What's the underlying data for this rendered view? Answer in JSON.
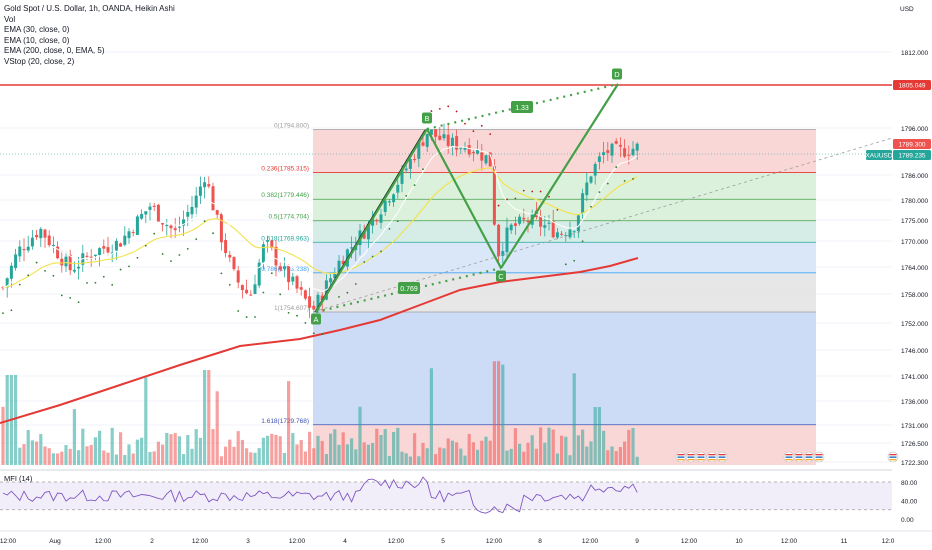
{
  "legend": {
    "title": "Gold Spot / U.S. Dollar, 1h, OANDA, Heikin Ashi",
    "lines": [
      "Vol",
      "EMA (30, close, 0)",
      "EMA (10, close, 0)",
      "EMA (200, close, 0, EMA, 5)",
      "VStop (20, close, 2)"
    ]
  },
  "currency": "USD",
  "mfi_label": "MFI (14)",
  "colors": {
    "up": "#26a69a",
    "down": "#ef5350",
    "ema200": "#e53935",
    "ema30": "#f2e24a",
    "fib_red": "#f9d0d0",
    "fib_green": "#d6eed6",
    "fib_teal": "#cfeae3",
    "fib_blue": "#d4e3f7",
    "fib_gray": "#e3e3e3",
    "fib_bigblue": "#c4d6f5",
    "pattern": "#43a047",
    "resistance": "#e53935"
  },
  "chart_data": {
    "type": "candlestick",
    "price_axis": {
      "ticks": [
        1812.0,
        1796.0,
        1786.0,
        1780.0,
        1775.0,
        1770.0,
        1764.0,
        1758.0,
        1752.0,
        1746.0,
        1741.0,
        1736.0,
        1731.0,
        1726.5,
        1722.3
      ],
      "tick_labels": [
        "1812.000",
        "1796.000",
        "1786.000",
        "1780.000",
        "1775.000",
        "1770.000",
        "1764.000",
        "1758.000",
        "1752.000",
        "1746.000",
        "1741.000",
        "1736.000",
        "1731.000",
        "1726.500",
        "1722.300"
      ]
    },
    "time_axis": {
      "labels": [
        "12:00",
        "Aug",
        "12:00",
        "2",
        "12:00",
        "3",
        "12:00",
        "4",
        "12:00",
        "5",
        "12:00",
        "8",
        "12:00",
        "9",
        "12:00",
        "10",
        "12:00",
        "11",
        "12:0"
      ]
    },
    "price_tags": [
      {
        "value": "1805.049",
        "style": "resistance"
      },
      {
        "value": "1789.300",
        "style": "current"
      },
      {
        "value": "XAUUSD",
        "style": "symbol"
      },
      {
        "value": "1789.235",
        "style": "symbol-value"
      }
    ],
    "fib_levels": [
      {
        "ratio": "0",
        "price": "1794.800",
        "label": "0(1794.800)"
      },
      {
        "ratio": "0.236",
        "price": "1785.315",
        "label": "0.236(1785.315)"
      },
      {
        "ratio": "0.382",
        "price": "1779.446",
        "label": "0.382(1779.446)"
      },
      {
        "ratio": "0.5",
        "price": "1774.704",
        "label": "0.5(1774.704)"
      },
      {
        "ratio": "0.618",
        "price": "1769.963",
        "label": "0.618(1769.963)"
      },
      {
        "ratio": "0.786",
        "price": "1763.238",
        "label": "0.786(1763.238)"
      },
      {
        "ratio": "1",
        "price": "1754.607",
        "label": "1(1754.607)"
      },
      {
        "ratio": "1.618",
        "price": "1729.768",
        "label": "1.618(1729.768)"
      }
    ],
    "pattern": {
      "points": [
        {
          "name": "A",
          "price": 1754.6
        },
        {
          "name": "B",
          "price": 1794.8
        },
        {
          "name": "C",
          "price": 1765.8
        },
        {
          "name": "D",
          "price": 1806.2
        }
      ],
      "ratios": [
        "1.33",
        "0.769"
      ]
    },
    "mfi_axis": {
      "ticks": [
        80,
        40,
        0
      ],
      "tick_labels": [
        "80.00",
        "40.00",
        "0.00"
      ]
    }
  }
}
